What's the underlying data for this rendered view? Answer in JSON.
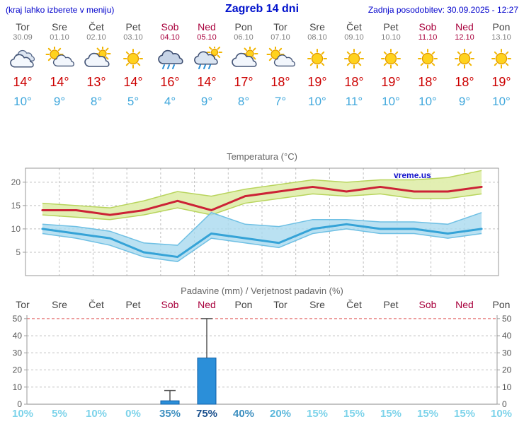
{
  "header": {
    "hint": "(kraj lahko izberete v meniju)",
    "title": "Zagreb 14 dni",
    "updated": "Zadnja posodobitev: 30.09.2025 - 12:27"
  },
  "colors": {
    "accent_blue": "#0000cc",
    "weekday": "#444444",
    "weekend": "#a8003c",
    "temp_high": "#cc0000",
    "temp_low": "#3fa7dc",
    "line_red": "#cc2236",
    "line_blue": "#35a3d7",
    "band_green": "#e0eeae",
    "band_green_edge": "#b8d45c",
    "band_blue": "#a9d9ef",
    "band_blue_edge": "#6fc0e4",
    "bar_blue": "#2b8fd9",
    "bar_blue_edge": "#0e5ea6",
    "grid": "#c0c0c0",
    "grid_red": "#e05555",
    "axis": "#999999",
    "watermark_blue": "#1515cc"
  },
  "days": [
    {
      "name": "Tor",
      "date": "30.09",
      "weekend": false,
      "icon": "cloudy",
      "high": "14",
      "low": "10"
    },
    {
      "name": "Sre",
      "date": "01.10",
      "weekend": false,
      "icon": "partly-sunny",
      "high": "14",
      "low": "9"
    },
    {
      "name": "Čet",
      "date": "02.10",
      "weekend": false,
      "icon": "cloudy-sun",
      "high": "13",
      "low": "8"
    },
    {
      "name": "Pet",
      "date": "03.10",
      "weekend": false,
      "icon": "sunny",
      "high": "14",
      "low": "5"
    },
    {
      "name": "Sob",
      "date": "04.10",
      "weekend": true,
      "icon": "rain",
      "high": "16",
      "low": "4"
    },
    {
      "name": "Ned",
      "date": "05.10",
      "weekend": true,
      "icon": "rain-sun",
      "high": "14",
      "low": "9"
    },
    {
      "name": "Pon",
      "date": "06.10",
      "weekend": false,
      "icon": "cloudy-sun",
      "high": "17",
      "low": "8"
    },
    {
      "name": "Tor",
      "date": "07.10",
      "weekend": false,
      "icon": "partly-sunny",
      "high": "18",
      "low": "7"
    },
    {
      "name": "Sre",
      "date": "08.10",
      "weekend": false,
      "icon": "sunny",
      "high": "19",
      "low": "10"
    },
    {
      "name": "Čet",
      "date": "09.10",
      "weekend": false,
      "icon": "sunny",
      "high": "18",
      "low": "11"
    },
    {
      "name": "Pet",
      "date": "10.10",
      "weekend": false,
      "icon": "sunny",
      "high": "19",
      "low": "10"
    },
    {
      "name": "Sob",
      "date": "11.10",
      "weekend": true,
      "icon": "sunny",
      "high": "18",
      "low": "10"
    },
    {
      "name": "Ned",
      "date": "12.10",
      "weekend": true,
      "icon": "sunny",
      "high": "18",
      "low": "9"
    },
    {
      "name": "Pon",
      "date": "13.10",
      "weekend": false,
      "icon": "sunny",
      "high": "19",
      "low": "10"
    }
  ],
  "chart_data": [
    {
      "type": "line",
      "title": "Temperatura (°C)",
      "x_labels": [
        "Tor",
        "Sre",
        "Čet",
        "Pet",
        "Sob",
        "Ned",
        "Pon",
        "Tor",
        "Sre",
        "Čet",
        "Pet",
        "Sob",
        "Ned",
        "Pon"
      ],
      "ylim": [
        0,
        23
      ],
      "yticks": [
        5,
        10,
        15,
        20
      ],
      "grid": "dashed",
      "watermark": "vreme.us",
      "series": [
        {
          "name": "max",
          "values": [
            14,
            14,
            13,
            14,
            16,
            14,
            17,
            18,
            19,
            18,
            19,
            18,
            18,
            19
          ]
        },
        {
          "name": "min",
          "values": [
            10,
            9,
            8,
            5,
            4,
            9,
            8,
            7,
            10,
            11,
            10,
            10,
            9,
            10
          ]
        },
        {
          "name": "max_upper",
          "values": [
            15.5,
            15,
            14.5,
            16,
            18,
            17,
            18.5,
            19.5,
            20.5,
            20,
            20.5,
            20.5,
            21,
            22.5
          ]
        },
        {
          "name": "max_lower",
          "values": [
            13,
            12.5,
            12,
            13,
            14.5,
            13,
            15.5,
            16.5,
            17.5,
            17,
            17.5,
            16.5,
            16.5,
            17.5
          ]
        },
        {
          "name": "min_upper",
          "values": [
            11,
            10.5,
            9.5,
            7,
            6.5,
            13.5,
            11,
            10.5,
            12,
            12,
            11.5,
            11.5,
            11,
            13.5
          ]
        },
        {
          "name": "min_lower",
          "values": [
            9,
            8,
            6.5,
            4,
            3,
            8,
            7,
            6,
            9,
            10,
            9,
            9,
            8,
            9
          ]
        }
      ]
    },
    {
      "type": "bar",
      "title": "Padavine (mm) / Verjetnost padavin (%)",
      "categories": [
        "Tor",
        "Sre",
        "Čet",
        "Pet",
        "Sob",
        "Ned",
        "Pon",
        "Tor",
        "Sre",
        "Čet",
        "Pet",
        "Sob",
        "Ned",
        "Pon"
      ],
      "values": [
        0,
        0,
        0,
        0,
        2,
        27,
        0,
        0,
        0,
        0,
        0,
        0,
        0,
        0
      ],
      "whisker_max": [
        0,
        0,
        0,
        0,
        8,
        50,
        0,
        0,
        0,
        0,
        0,
        0,
        0,
        0
      ],
      "ylim": [
        0,
        52
      ],
      "yticks": [
        0,
        10,
        20,
        30,
        40,
        50
      ],
      "probabilities": [
        {
          "label": "10%",
          "color": "#7dd3ea"
        },
        {
          "label": "5%",
          "color": "#7dd3ea"
        },
        {
          "label": "10%",
          "color": "#7dd3ea"
        },
        {
          "label": "0%",
          "color": "#7dd3ea"
        },
        {
          "label": "35%",
          "color": "#3d8fc0"
        },
        {
          "label": "75%",
          "color": "#174e8c"
        },
        {
          "label": "40%",
          "color": "#3d8fc0"
        },
        {
          "label": "20%",
          "color": "#5cb8dc"
        },
        {
          "label": "15%",
          "color": "#7dd3ea"
        },
        {
          "label": "15%",
          "color": "#7dd3ea"
        },
        {
          "label": "15%",
          "color": "#7dd3ea"
        },
        {
          "label": "15%",
          "color": "#7dd3ea"
        },
        {
          "label": "15%",
          "color": "#7dd3ea"
        },
        {
          "label": "10%",
          "color": "#7dd3ea"
        }
      ]
    }
  ]
}
